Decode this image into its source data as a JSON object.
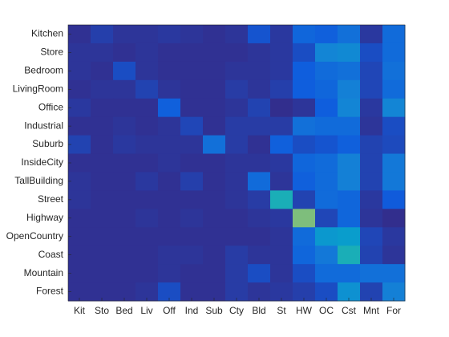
{
  "chart_data": {
    "type": "heatmap",
    "x_categories": [
      "Kit",
      "Sto",
      "Bed",
      "Liv",
      "Off",
      "Ind",
      "Sub",
      "Cty",
      "Bld",
      "St",
      "HW",
      "OC",
      "Cst",
      "Mnt",
      "For"
    ],
    "y_categories": [
      "Kitchen",
      "Store",
      "Bedroom",
      "LivingRoom",
      "Office",
      "Industrial",
      "Suburb",
      "InsideCity",
      "TallBuilding",
      "Street",
      "Highway",
      "OpenCountry",
      "Coast",
      "Mountain",
      "Forest"
    ],
    "values": [
      [
        0.02,
        0.06,
        0.03,
        0.03,
        0.04,
        0.03,
        0.02,
        0.03,
        0.12,
        0.04,
        0.18,
        0.16,
        0.22,
        0.04,
        0.2
      ],
      [
        0.03,
        0.03,
        0.02,
        0.03,
        0.02,
        0.02,
        0.02,
        0.02,
        0.03,
        0.04,
        0.1,
        0.3,
        0.32,
        0.1,
        0.2
      ],
      [
        0.03,
        0.02,
        0.1,
        0.03,
        0.02,
        0.02,
        0.02,
        0.03,
        0.03,
        0.04,
        0.15,
        0.2,
        0.22,
        0.08,
        0.22
      ],
      [
        0.02,
        0.03,
        0.03,
        0.07,
        0.03,
        0.02,
        0.02,
        0.05,
        0.03,
        0.06,
        0.15,
        0.18,
        0.28,
        0.08,
        0.2
      ],
      [
        0.04,
        0.02,
        0.02,
        0.02,
        0.16,
        0.02,
        0.02,
        0.03,
        0.07,
        0.01,
        0.03,
        0.15,
        0.3,
        0.04,
        0.3
      ],
      [
        0.02,
        0.02,
        0.03,
        0.02,
        0.03,
        0.08,
        0.02,
        0.05,
        0.05,
        0.05,
        0.22,
        0.2,
        0.2,
        0.03,
        0.1
      ],
      [
        0.07,
        0.02,
        0.04,
        0.03,
        0.03,
        0.03,
        0.22,
        0.05,
        0.02,
        0.16,
        0.1,
        0.12,
        0.16,
        0.07,
        0.09
      ],
      [
        0.02,
        0.02,
        0.02,
        0.02,
        0.03,
        0.02,
        0.02,
        0.03,
        0.03,
        0.04,
        0.18,
        0.2,
        0.28,
        0.07,
        0.25
      ],
      [
        0.03,
        0.02,
        0.02,
        0.04,
        0.02,
        0.06,
        0.02,
        0.03,
        0.2,
        0.03,
        0.16,
        0.2,
        0.28,
        0.07,
        0.25
      ],
      [
        0.03,
        0.02,
        0.02,
        0.02,
        0.02,
        0.02,
        0.02,
        0.03,
        0.05,
        0.5,
        0.07,
        0.2,
        0.18,
        0.04,
        0.14
      ],
      [
        0.02,
        0.02,
        0.02,
        0.03,
        0.02,
        0.03,
        0.02,
        0.02,
        0.03,
        0.04,
        0.7,
        0.08,
        0.18,
        0.03,
        0.01
      ],
      [
        0.02,
        0.02,
        0.02,
        0.02,
        0.02,
        0.02,
        0.02,
        0.02,
        0.02,
        0.03,
        0.2,
        0.38,
        0.4,
        0.08,
        0.04
      ],
      [
        0.02,
        0.02,
        0.02,
        0.02,
        0.03,
        0.03,
        0.02,
        0.05,
        0.03,
        0.03,
        0.18,
        0.25,
        0.5,
        0.07,
        0.03
      ],
      [
        0.02,
        0.02,
        0.02,
        0.02,
        0.03,
        0.02,
        0.02,
        0.05,
        0.1,
        0.03,
        0.1,
        0.2,
        0.2,
        0.22,
        0.22
      ],
      [
        0.02,
        0.02,
        0.02,
        0.03,
        0.1,
        0.02,
        0.02,
        0.05,
        0.03,
        0.04,
        0.06,
        0.1,
        0.35,
        0.07,
        0.28
      ]
    ],
    "clim": [
      0,
      1
    ],
    "colormap": [
      "#352a87",
      "#0f5cdd",
      "#1481d6",
      "#06a4ca",
      "#2eb7a4",
      "#87bf77",
      "#d1bb59",
      "#f9fb0e"
    ]
  }
}
